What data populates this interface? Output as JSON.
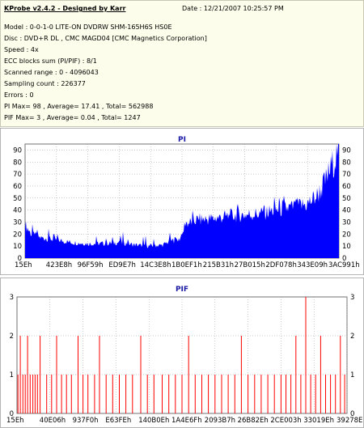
{
  "info": {
    "app": "KProbe v2.4.2 - Designed by Karr",
    "date": "Date : 12/21/2007 10:25:57 PM",
    "lines": [
      "Model : 0-0-1-0 LITE-ON DVDRW SHM-165H6S HS0E",
      "Disc : DVD+R DL , CMC MAGD04 [CMC Magnetics Corporation]",
      "Speed : 4x",
      "ECC blocks sum (PI/PIF) : 8/1",
      "Scanned range : 0 - 4096043",
      "Sampling count : 226377",
      "Errors : 0",
      "PI Max= 98 , Average= 17.41 , Total= 562988",
      "PIF Max= 3 , Average= 0.04 , Total= 1247"
    ]
  },
  "colors": {
    "pi": "#0000ff",
    "pif": "#ff0000",
    "title": "#1a1aa6"
  },
  "chart_data": [
    {
      "type": "area",
      "title": "PI",
      "xlabel": "",
      "ylabel": "",
      "ylim": [
        0,
        95
      ],
      "yticks": [
        0,
        10,
        20,
        30,
        40,
        50,
        60,
        70,
        80,
        90
      ],
      "yticks_right": [
        0,
        10,
        20,
        30,
        40,
        50,
        60,
        70,
        80,
        90
      ],
      "xtick_labels": [
        "15Eh",
        "423E8h",
        "96F59h",
        "ED9E7h",
        "14C3E8h",
        "1B0EF1h",
        "215B31h",
        "27B015h",
        "2DF078h",
        "343E09h",
        "3AC991h"
      ],
      "grid": true,
      "series": [
        {
          "x": [
            0,
            0.02,
            0.05,
            0.08,
            0.1,
            0.15,
            0.2,
            0.25,
            0.3,
            0.35,
            0.4,
            0.44,
            0.46,
            0.48,
            0.5,
            0.51,
            0.52,
            0.55,
            0.6,
            0.65,
            0.7,
            0.75,
            0.8,
            0.85,
            0.9,
            0.93,
            0.95,
            0.97,
            0.99,
            1.0
          ],
          "values": [
            28,
            20,
            17,
            16,
            15,
            13,
            12,
            12,
            13,
            11,
            10,
            11,
            14,
            15,
            17,
            30,
            29,
            32,
            33,
            35,
            36,
            37,
            40,
            42,
            45,
            52,
            60,
            72,
            85,
            95
          ]
        }
      ]
    },
    {
      "type": "bar",
      "title": "PIF",
      "xlabel": "",
      "ylabel": "",
      "ylim": [
        0,
        3
      ],
      "yticks": [
        0,
        1,
        2,
        3
      ],
      "yticks_right": [
        0,
        1,
        2,
        3
      ],
      "xtick_labels": [
        "15Eh",
        "40E06h",
        "937F0h",
        "E63FEh",
        "140B0Eh",
        "1A4E6Fh",
        "2093B7h",
        "26B82Eh",
        "2CE003h",
        "33019Eh",
        "39278Eh"
      ],
      "grid": true,
      "series": [
        {
          "x": [
            0.003,
            0.01,
            0.018,
            0.025,
            0.032,
            0.04,
            0.048,
            0.055,
            0.062,
            0.07,
            0.09,
            0.105,
            0.12,
            0.135,
            0.15,
            0.165,
            0.185,
            0.2,
            0.215,
            0.235,
            0.25,
            0.27,
            0.29,
            0.31,
            0.33,
            0.35,
            0.375,
            0.395,
            0.415,
            0.44,
            0.46,
            0.48,
            0.5,
            0.52,
            0.54,
            0.56,
            0.58,
            0.6,
            0.62,
            0.64,
            0.66,
            0.68,
            0.7,
            0.72,
            0.74,
            0.76,
            0.78,
            0.8,
            0.815,
            0.83,
            0.845,
            0.86,
            0.875,
            0.89,
            0.905,
            0.92,
            0.935,
            0.95,
            0.965,
            0.98,
            0.993
          ],
          "values": [
            1,
            2,
            1,
            1,
            2,
            1,
            1,
            1,
            1,
            2,
            1,
            1,
            2,
            1,
            1,
            1,
            2,
            1,
            1,
            1,
            2,
            1,
            1,
            1,
            1,
            1,
            2,
            1,
            1,
            1,
            1,
            1,
            1,
            2,
            1,
            1,
            1,
            1,
            1,
            1,
            1,
            2,
            1,
            1,
            1,
            1,
            1,
            1,
            1,
            1,
            2,
            1,
            3,
            1,
            1,
            2,
            1,
            1,
            1,
            2,
            1
          ]
        }
      ]
    }
  ]
}
